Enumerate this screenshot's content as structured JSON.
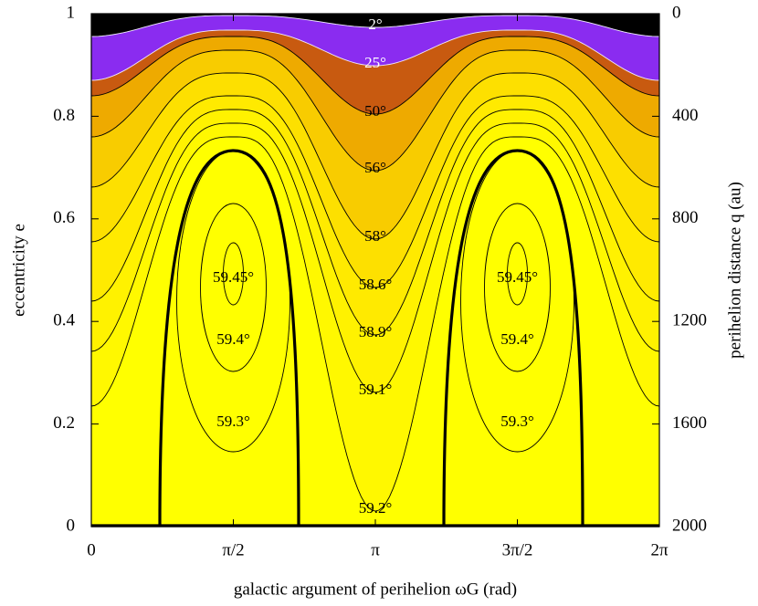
{
  "chart_data": {
    "type": "contour",
    "xlabel": "galactic argument of perihelion ωG (rad)",
    "ylabel": "eccentricity e",
    "y2label": "perihelion distance q (au)",
    "xlim": [
      0,
      6.2832
    ],
    "xticks": [
      0,
      {
        "value": 1.5708,
        "label": "π/2"
      },
      {
        "value": 3.1416,
        "label": "π"
      },
      {
        "value": 4.7124,
        "label": "3π/2"
      },
      {
        "value": 6.2832,
        "label": "2π"
      }
    ],
    "ylim": [
      0,
      1
    ],
    "yticks": [
      0,
      0.2,
      0.4,
      0.6,
      0.8,
      1
    ],
    "y2lim": [
      2000,
      0
    ],
    "y2ticks": [
      0,
      400,
      800,
      1200,
      1600,
      2000
    ],
    "levels": [
      {
        "value": 2,
        "label": "2°",
        "color": "#000000"
      },
      {
        "value": 25,
        "label": "25°",
        "color": "#8a2cf0"
      },
      {
        "value": 50,
        "label": "50°",
        "color": "#c85a10"
      },
      {
        "value": 56,
        "label": "56°",
        "color": "#eeaa00"
      },
      {
        "value": 58,
        "label": "58°",
        "color": "#f8cc00"
      },
      {
        "value": 58.6,
        "label": "58.6°",
        "color": "#fde000"
      },
      {
        "value": 58.9,
        "label": "58.9°",
        "color": "#ffea00"
      },
      {
        "value": 59.1,
        "label": "59.1°",
        "color": "#fff200"
      },
      {
        "value": 59.2,
        "label": "59.2°",
        "color": "#fff800"
      },
      {
        "value": 59.3,
        "label": "59.3°",
        "color": "#ffff00"
      },
      {
        "value": 59.4,
        "label": "59.4°",
        "color": "#ffff00"
      },
      {
        "value": 59.45,
        "label": "59.45°",
        "color": "#ffff00"
      }
    ]
  }
}
